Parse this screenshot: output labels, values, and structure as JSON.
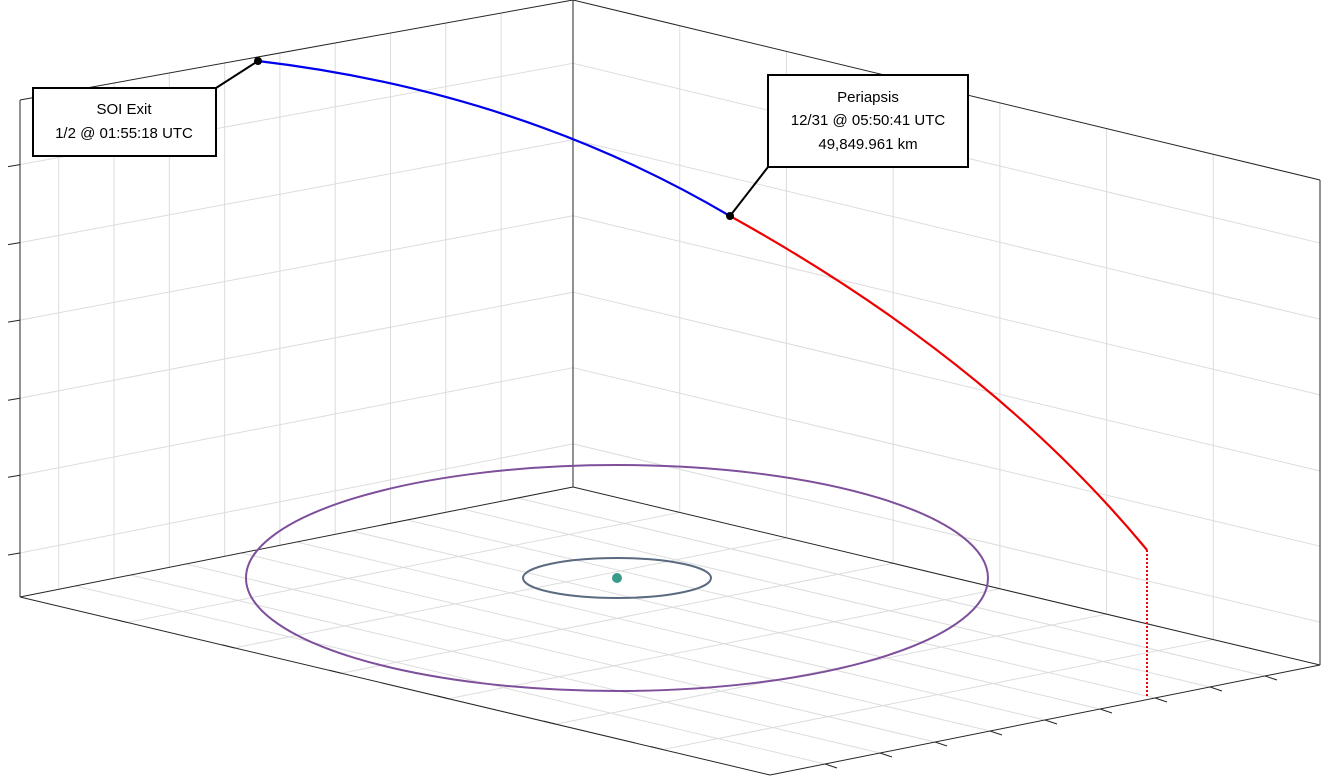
{
  "annotations": [
    {
      "lines": [
        "SOI Exit",
        "1/2 @ 01:55:18 UTC"
      ]
    },
    {
      "lines": [
        "Periapsis",
        "12/31 @ 05:50:41 UTC",
        "49,849.961 km"
      ]
    }
  ]
}
